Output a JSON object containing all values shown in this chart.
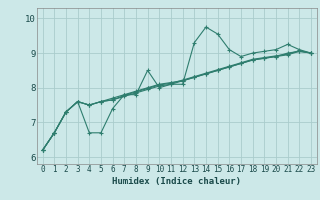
{
  "xlabel": "Humidex (Indice chaleur)",
  "background_color": "#cce8e8",
  "grid_color": "#aacccc",
  "line_color": "#2e7d6e",
  "xlim": [
    -0.5,
    23.5
  ],
  "ylim": [
    5.8,
    10.3
  ],
  "xticks": [
    0,
    1,
    2,
    3,
    4,
    5,
    6,
    7,
    8,
    9,
    10,
    11,
    12,
    13,
    14,
    15,
    16,
    17,
    18,
    19,
    20,
    21,
    22,
    23
  ],
  "yticks": [
    6,
    7,
    8,
    9,
    10
  ],
  "series": [
    [
      6.2,
      6.7,
      7.3,
      7.6,
      6.7,
      6.7,
      7.4,
      7.8,
      7.8,
      8.5,
      8.0,
      8.1,
      8.1,
      9.3,
      9.75,
      9.55,
      9.1,
      8.9,
      9.0,
      9.05,
      9.1,
      9.25,
      9.1,
      9.0
    ],
    [
      6.2,
      6.7,
      7.3,
      7.6,
      7.5,
      7.6,
      7.7,
      7.8,
      7.9,
      8.0,
      8.1,
      8.15,
      8.2,
      8.3,
      8.4,
      8.5,
      8.6,
      8.7,
      8.8,
      8.85,
      8.9,
      9.0,
      9.05,
      9.0
    ],
    [
      6.2,
      6.7,
      7.3,
      7.6,
      7.5,
      7.6,
      7.65,
      7.75,
      7.85,
      7.95,
      8.05,
      8.1,
      8.2,
      8.3,
      8.4,
      8.5,
      8.6,
      8.7,
      8.8,
      8.85,
      8.9,
      8.95,
      9.05,
      9.0
    ],
    [
      6.2,
      6.7,
      7.3,
      7.6,
      7.5,
      7.6,
      7.65,
      7.78,
      7.88,
      7.98,
      8.08,
      8.13,
      8.22,
      8.32,
      8.42,
      8.52,
      8.62,
      8.72,
      8.82,
      8.87,
      8.92,
      8.97,
      9.07,
      9.0
    ]
  ]
}
